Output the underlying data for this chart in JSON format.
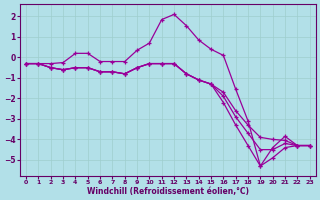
{
  "bg_color": "#b2e0e8",
  "grid_color": "#9ecece",
  "line_color": "#990099",
  "hours": [
    0,
    1,
    2,
    3,
    4,
    5,
    6,
    7,
    8,
    9,
    10,
    11,
    12,
    13,
    14,
    15,
    16,
    17,
    18,
    19,
    20,
    21,
    22,
    23
  ],
  "y_main": [
    -0.3,
    -0.3,
    -0.3,
    -0.25,
    0.2,
    0.2,
    -0.2,
    -0.2,
    -0.2,
    0.35,
    0.7,
    1.85,
    2.1,
    1.55,
    0.85,
    0.4,
    0.1,
    -1.55,
    -3.1,
    -5.3,
    -4.4,
    -3.85,
    -4.3,
    -4.3
  ],
  "y_line2": [
    -0.3,
    -0.3,
    -0.5,
    -0.6,
    -0.5,
    -0.5,
    -0.7,
    -0.7,
    -0.8,
    -0.5,
    -0.3,
    -0.3,
    -0.3,
    -0.8,
    -1.1,
    -1.3,
    -1.7,
    -2.6,
    -3.3,
    -3.9,
    -4.0,
    -4.05,
    -4.3,
    -4.3
  ],
  "y_line3": [
    -0.3,
    -0.3,
    -0.5,
    -0.6,
    -0.5,
    -0.5,
    -0.7,
    -0.7,
    -0.8,
    -0.5,
    -0.3,
    -0.3,
    -0.3,
    -0.8,
    -1.1,
    -1.3,
    -1.9,
    -2.9,
    -3.7,
    -4.5,
    -4.5,
    -4.2,
    -4.3,
    -4.3
  ],
  "y_line4": [
    -0.3,
    -0.3,
    -0.5,
    -0.6,
    -0.5,
    -0.5,
    -0.7,
    -0.7,
    -0.8,
    -0.5,
    -0.3,
    -0.3,
    -0.3,
    -0.8,
    -1.1,
    -1.3,
    -2.2,
    -3.3,
    -4.3,
    -5.3,
    -4.9,
    -4.4,
    -4.3,
    -4.3
  ],
  "ylim": [
    -5.8,
    2.6
  ],
  "yticks": [
    -5,
    -4,
    -3,
    -2,
    -1,
    0,
    1,
    2
  ],
  "xlim": [
    -0.5,
    23.5
  ],
  "xticks": [
    0,
    1,
    2,
    3,
    4,
    5,
    6,
    7,
    8,
    9,
    10,
    11,
    12,
    13,
    14,
    15,
    16,
    17,
    18,
    19,
    20,
    21,
    22,
    23
  ],
  "xlabel": "Windchill (Refroidissement éolien,°C)"
}
